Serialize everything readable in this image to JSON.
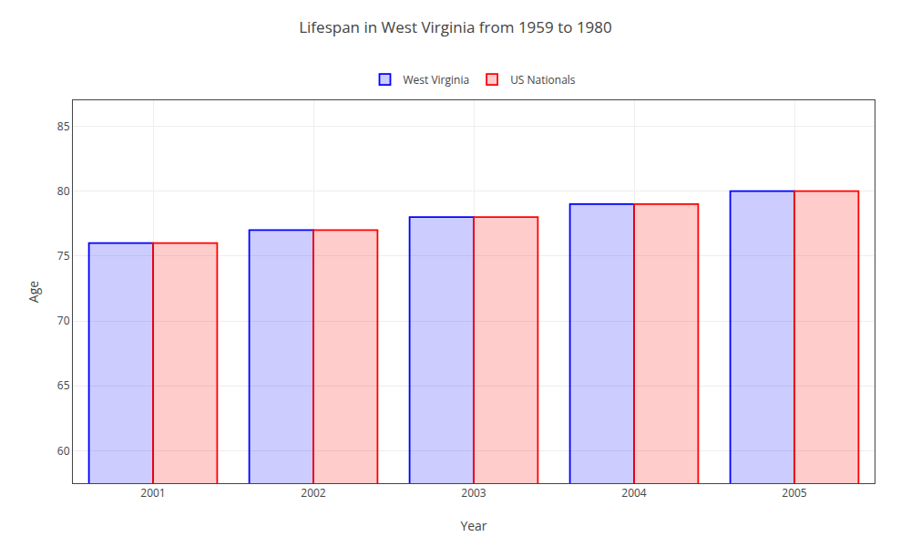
{
  "chart_data": {
    "type": "bar",
    "title": "Lifespan in West Virginia from 1959 to 1980",
    "xlabel": "Year",
    "ylabel": "Age",
    "categories": [
      "2001",
      "2002",
      "2003",
      "2004",
      "2005"
    ],
    "series": [
      {
        "name": "West Virginia",
        "color": "#0000ff",
        "values": [
          76,
          77,
          78,
          79,
          80
        ]
      },
      {
        "name": "US Nationals",
        "color": "#ff0000",
        "values": [
          76,
          77,
          78,
          79,
          80
        ]
      }
    ],
    "ylim": [
      57.5,
      87
    ],
    "yticks": [
      60,
      65,
      70,
      75,
      80,
      85
    ],
    "grid": true,
    "legend": "top"
  }
}
